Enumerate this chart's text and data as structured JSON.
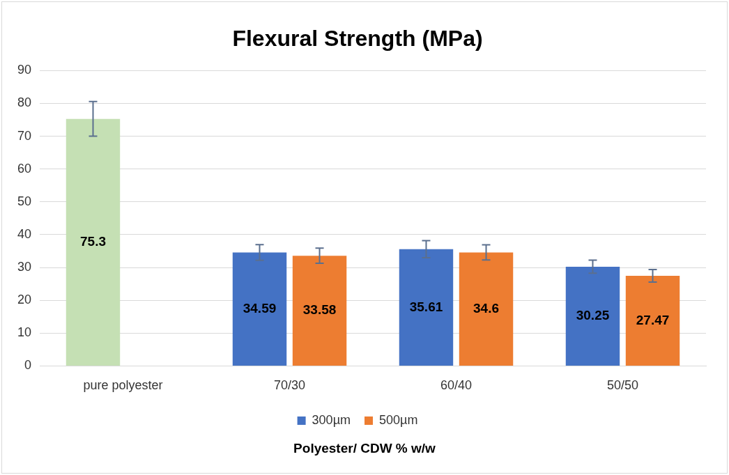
{
  "chart_data": {
    "type": "bar",
    "title": "Flexural Strength (MPa)",
    "xlabel": "Polyester/ CDW % w/w",
    "categories": [
      "pure polyester",
      "70/30",
      "60/40",
      "50/50"
    ],
    "series": [
      {
        "name": "300µm",
        "color": "#4472c4",
        "colors": [
          "#c5e0b4",
          "#4472c4",
          "#4472c4",
          "#4472c4"
        ],
        "values": [
          75.3,
          34.59,
          35.61,
          30.25
        ],
        "errors": [
          5.3,
          2.4,
          2.6,
          2.0
        ]
      },
      {
        "name": "500µm",
        "color": "#ed7d31",
        "values": [
          null,
          33.58,
          34.6,
          27.47
        ],
        "errors": [
          null,
          2.3,
          2.3,
          1.9
        ]
      }
    ],
    "ylim": [
      0,
      90
    ],
    "yticks": [
      0,
      10,
      20,
      30,
      40,
      50,
      60,
      70,
      80,
      90
    ],
    "grid": "y",
    "legend": "bottom",
    "data_labels": true
  }
}
